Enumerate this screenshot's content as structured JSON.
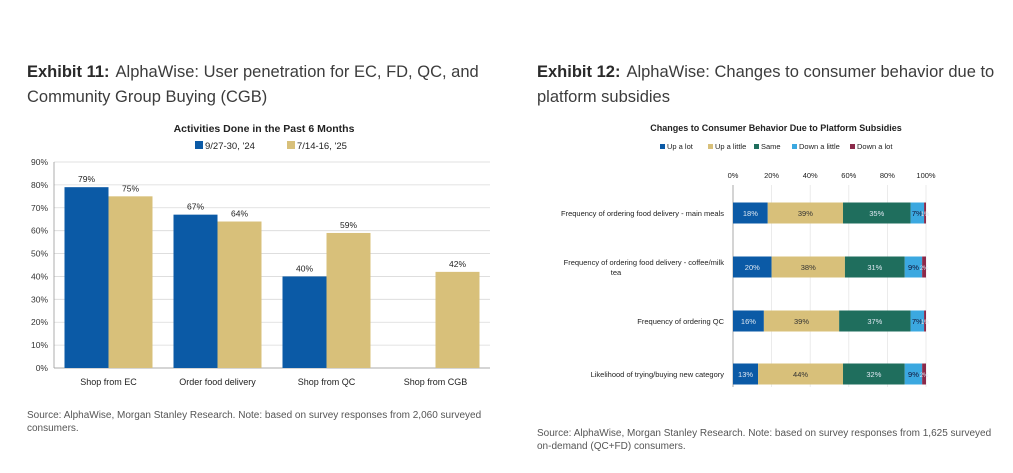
{
  "colors": {
    "dark_blue": "#0b5aa6",
    "tan": "#d8c07a",
    "teal": "#1f6e5d",
    "light_blue": "#3ba8e0",
    "maroon": "#8b2a4a",
    "grid": "#d9d9d9"
  },
  "left": {
    "exhibit_label": "Exhibit 11:",
    "title_text": "AlphaWise: User penetration for EC, FD, QC, and Community Group Buying (CGB)",
    "source": "Source: AlphaWise, Morgan Stanley Research. Note: based on survey responses from 2,060 surveyed consumers."
  },
  "right": {
    "exhibit_label": "Exhibit 12:",
    "title_text": "AlphaWise: Changes to consumer behavior due to platform subsidies",
    "source": "Source: AlphaWise, Morgan Stanley Research. Note: based on survey responses from 1,625 surveyed on-demand (QC+FD) consumers."
  },
  "chart_data": [
    {
      "type": "bar",
      "title": "Activities Done in the Past 6 Months",
      "categories": [
        "Shop from EC",
        "Order food delivery",
        "Shop from QC",
        "Shop from CGB"
      ],
      "series": [
        {
          "name": "9/27-30, '24",
          "color": "#0b5aa6",
          "values": [
            79,
            67,
            40,
            null
          ],
          "labels": [
            "79%",
            "67%",
            "40%",
            ""
          ]
        },
        {
          "name": "7/14-16, '25",
          "color": "#d8c07a",
          "values": [
            75,
            64,
            59,
            42
          ],
          "labels": [
            "75%",
            "64%",
            "59%",
            "42%"
          ]
        }
      ],
      "ylim": [
        0,
        90
      ],
      "yticks": [
        0,
        10,
        20,
        30,
        40,
        50,
        60,
        70,
        80,
        90
      ],
      "ytick_labels": [
        "0%",
        "10%",
        "20%",
        "30%",
        "40%",
        "50%",
        "60%",
        "70%",
        "80%",
        "90%"
      ],
      "xlabel": "",
      "ylabel": "",
      "legend_position": "top-center",
      "grid": true
    },
    {
      "type": "bar",
      "orientation": "horizontal-stacked",
      "title": "Changes to Consumer Behavior Due to Platform Subsidies",
      "categories": [
        "Frequency of ordering food delivery - main meals",
        "Frequency of ordering food delivery - coffee/milk tea",
        "Frequency of ordering QC",
        "Likelihood of trying/buying new category"
      ],
      "category_lines": [
        [
          "Frequency of ordering food delivery - main meals"
        ],
        [
          "Frequency of ordering food delivery - coffee/milk",
          "tea"
        ],
        [
          "Frequency of ordering QC"
        ],
        [
          "Likelihood of trying/buying new category"
        ]
      ],
      "series": [
        {
          "name": "Up a lot",
          "color": "#0b5aa6",
          "values": [
            18,
            20,
            16,
            13
          ],
          "labels": [
            "18%",
            "20%",
            "16%",
            "13%"
          ]
        },
        {
          "name": "Up a little",
          "color": "#d8c07a",
          "values": [
            39,
            38,
            39,
            44
          ],
          "labels": [
            "39%",
            "38%",
            "39%",
            "44%"
          ]
        },
        {
          "name": "Same",
          "color": "#1f6e5d",
          "values": [
            35,
            31,
            37,
            32
          ],
          "labels": [
            "35%",
            "31%",
            "37%",
            "32%"
          ]
        },
        {
          "name": "Down a little",
          "color": "#3ba8e0",
          "values": [
            7,
            9,
            7,
            9
          ],
          "labels": [
            "7%",
            "9%",
            "7%",
            "9%"
          ]
        },
        {
          "name": "Down a lot",
          "color": "#8b2a4a",
          "values": [
            1,
            2,
            1,
            2
          ],
          "labels": [
            "1%",
            "2%",
            "1%",
            "2%"
          ]
        }
      ],
      "xlim": [
        0,
        100
      ],
      "xticks": [
        0,
        20,
        40,
        60,
        80,
        100
      ],
      "xtick_labels": [
        "0%",
        "20%",
        "40%",
        "60%",
        "80%",
        "100%"
      ],
      "xlabel": "",
      "ylabel": "",
      "legend_position": "top-center",
      "grid": true
    }
  ]
}
